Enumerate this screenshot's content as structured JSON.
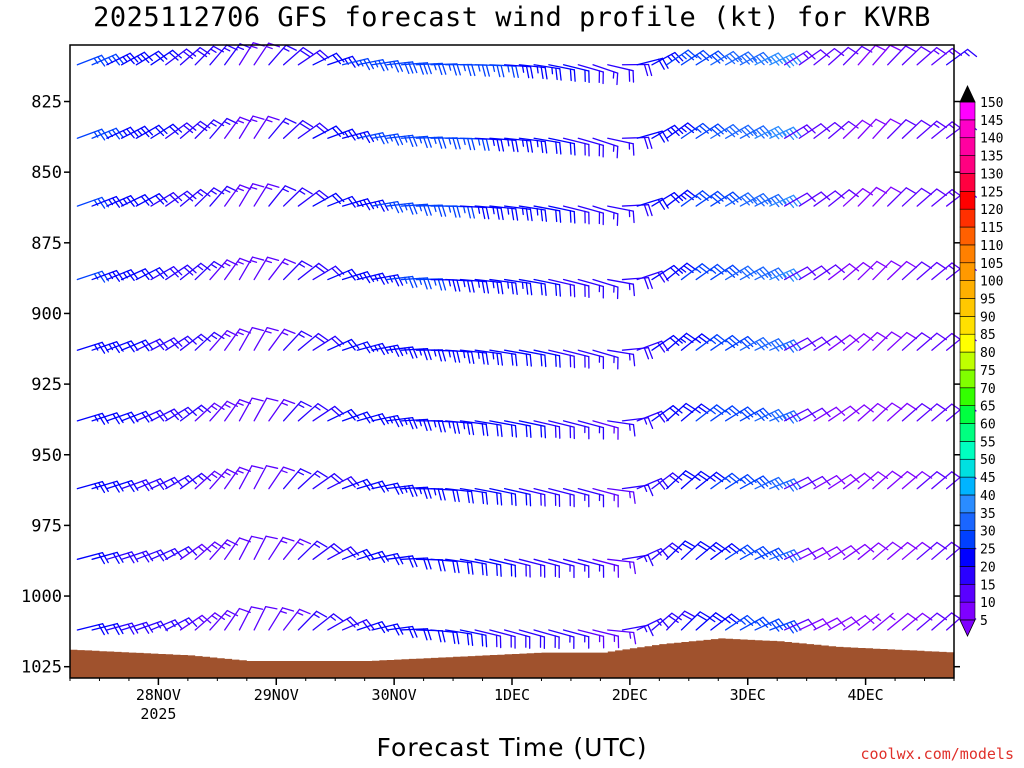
{
  "chart_data": {
    "type": "wind-barb-time-height",
    "title": "2025112706 GFS forecast wind profile (kt) for KVRB",
    "xlabel": "Forecast Time (UTC)",
    "ylabel": "",
    "credit": "coolwx.com/models",
    "y_axis": {
      "unit": "hPa",
      "range": [
        1029,
        805
      ],
      "ticks": [
        825,
        850,
        875,
        900,
        925,
        950,
        975,
        1000,
        1025
      ],
      "tick_labels": [
        "825",
        "850",
        "875",
        "900",
        "925",
        "950",
        "975",
        "1000",
        "1025"
      ]
    },
    "x_axis": {
      "unit": "days since 2025-11-27 00Z",
      "range": [
        0.25,
        7.75
      ],
      "step_hours": 3,
      "ticks": [
        1,
        2,
        3,
        4,
        5,
        6,
        7
      ],
      "tick_labels": [
        "28NOV",
        "29NOV",
        "30NOV",
        "1DEC",
        "2DEC",
        "3DEC",
        "4DEC"
      ],
      "year_label": "2025"
    },
    "pressure_levels": [
      812,
      838,
      862,
      888,
      913,
      938,
      962,
      987,
      1012
    ],
    "wind_phases": [
      {
        "t_start": 0.25,
        "t_end": 1.0,
        "direction_deg": [
          70,
          55
        ],
        "speed_kt": [
          25,
          18
        ]
      },
      {
        "t_start": 1.0,
        "t_end": 1.75,
        "direction_deg": [
          55,
          30
        ],
        "speed_kt": [
          18,
          12
        ]
      },
      {
        "t_start": 1.75,
        "t_end": 2.5,
        "direction_deg": [
          30,
          75
        ],
        "speed_kt": [
          12,
          22
        ]
      },
      {
        "t_start": 2.5,
        "t_end": 3.0,
        "direction_deg": [
          75,
          85
        ],
        "speed_kt": [
          22,
          25
        ]
      },
      {
        "t_start": 3.0,
        "t_end": 4.0,
        "direction_deg": [
          85,
          95
        ],
        "speed_kt": [
          25,
          22
        ]
      },
      {
        "t_start": 4.0,
        "t_end": 4.75,
        "direction_deg": [
          95,
          110
        ],
        "speed_kt": [
          22,
          15
        ]
      },
      {
        "t_start": 4.75,
        "t_end": 5.25,
        "direction_deg": [
          110,
          55
        ],
        "speed_kt": [
          15,
          22
        ]
      },
      {
        "t_start": 5.25,
        "t_end": 6.25,
        "direction_deg": [
          55,
          65
        ],
        "speed_kt": [
          22,
          35
        ]
      },
      {
        "t_start": 6.25,
        "t_end": 7.0,
        "direction_deg": [
          60,
          40
        ],
        "speed_kt": [
          12,
          8
        ]
      },
      {
        "t_start": 7.0,
        "t_end": 7.75,
        "direction_deg": [
          40,
          55
        ],
        "speed_kt": [
          8,
          14
        ]
      }
    ],
    "surface_pressure": {
      "times": [
        0.25,
        0.75,
        1.25,
        1.75,
        2.25,
        2.75,
        3.25,
        3.75,
        4.25,
        4.75,
        5.25,
        5.75,
        6.25,
        6.75,
        7.25,
        7.75
      ],
      "hpa": [
        1019,
        1020,
        1021,
        1023,
        1023,
        1023,
        1022,
        1021,
        1020,
        1020,
        1017,
        1015,
        1016,
        1018,
        1019,
        1020
      ]
    },
    "colorbar": {
      "unit": "kt",
      "labels": [
        "5",
        "10",
        "15",
        "20",
        "25",
        "30",
        "35",
        "40",
        "45",
        "50",
        "55",
        "60",
        "65",
        "70",
        "75",
        "80",
        "85",
        "90",
        "95",
        "100",
        "105",
        "110",
        "115",
        "120",
        "125",
        "130",
        "135",
        "140",
        "145",
        "150"
      ],
      "bounds": [
        5,
        10,
        15,
        20,
        25,
        30,
        35,
        40,
        45,
        50,
        55,
        60,
        65,
        70,
        75,
        80,
        85,
        90,
        95,
        100,
        105,
        110,
        115,
        120,
        125,
        130,
        135,
        140,
        145,
        150
      ],
      "colors": [
        "#7f00ff",
        "#5a00ff",
        "#2a00ff",
        "#0000ff",
        "#0040ff",
        "#1a66ff",
        "#2a8cff",
        "#00b4ff",
        "#00e0e0",
        "#00ffc0",
        "#00ff80",
        "#00ff40",
        "#33ff00",
        "#80ff00",
        "#bfff00",
        "#ffff00",
        "#ffe000",
        "#ffc800",
        "#ffb000",
        "#ff9900",
        "#ff8000",
        "#ff6000",
        "#ff3000",
        "#ff0000",
        "#ff0040",
        "#ff0080",
        "#ff00a0",
        "#ff00c8",
        "#ff00ff"
      ]
    },
    "terrain_color": "#a0522d"
  }
}
